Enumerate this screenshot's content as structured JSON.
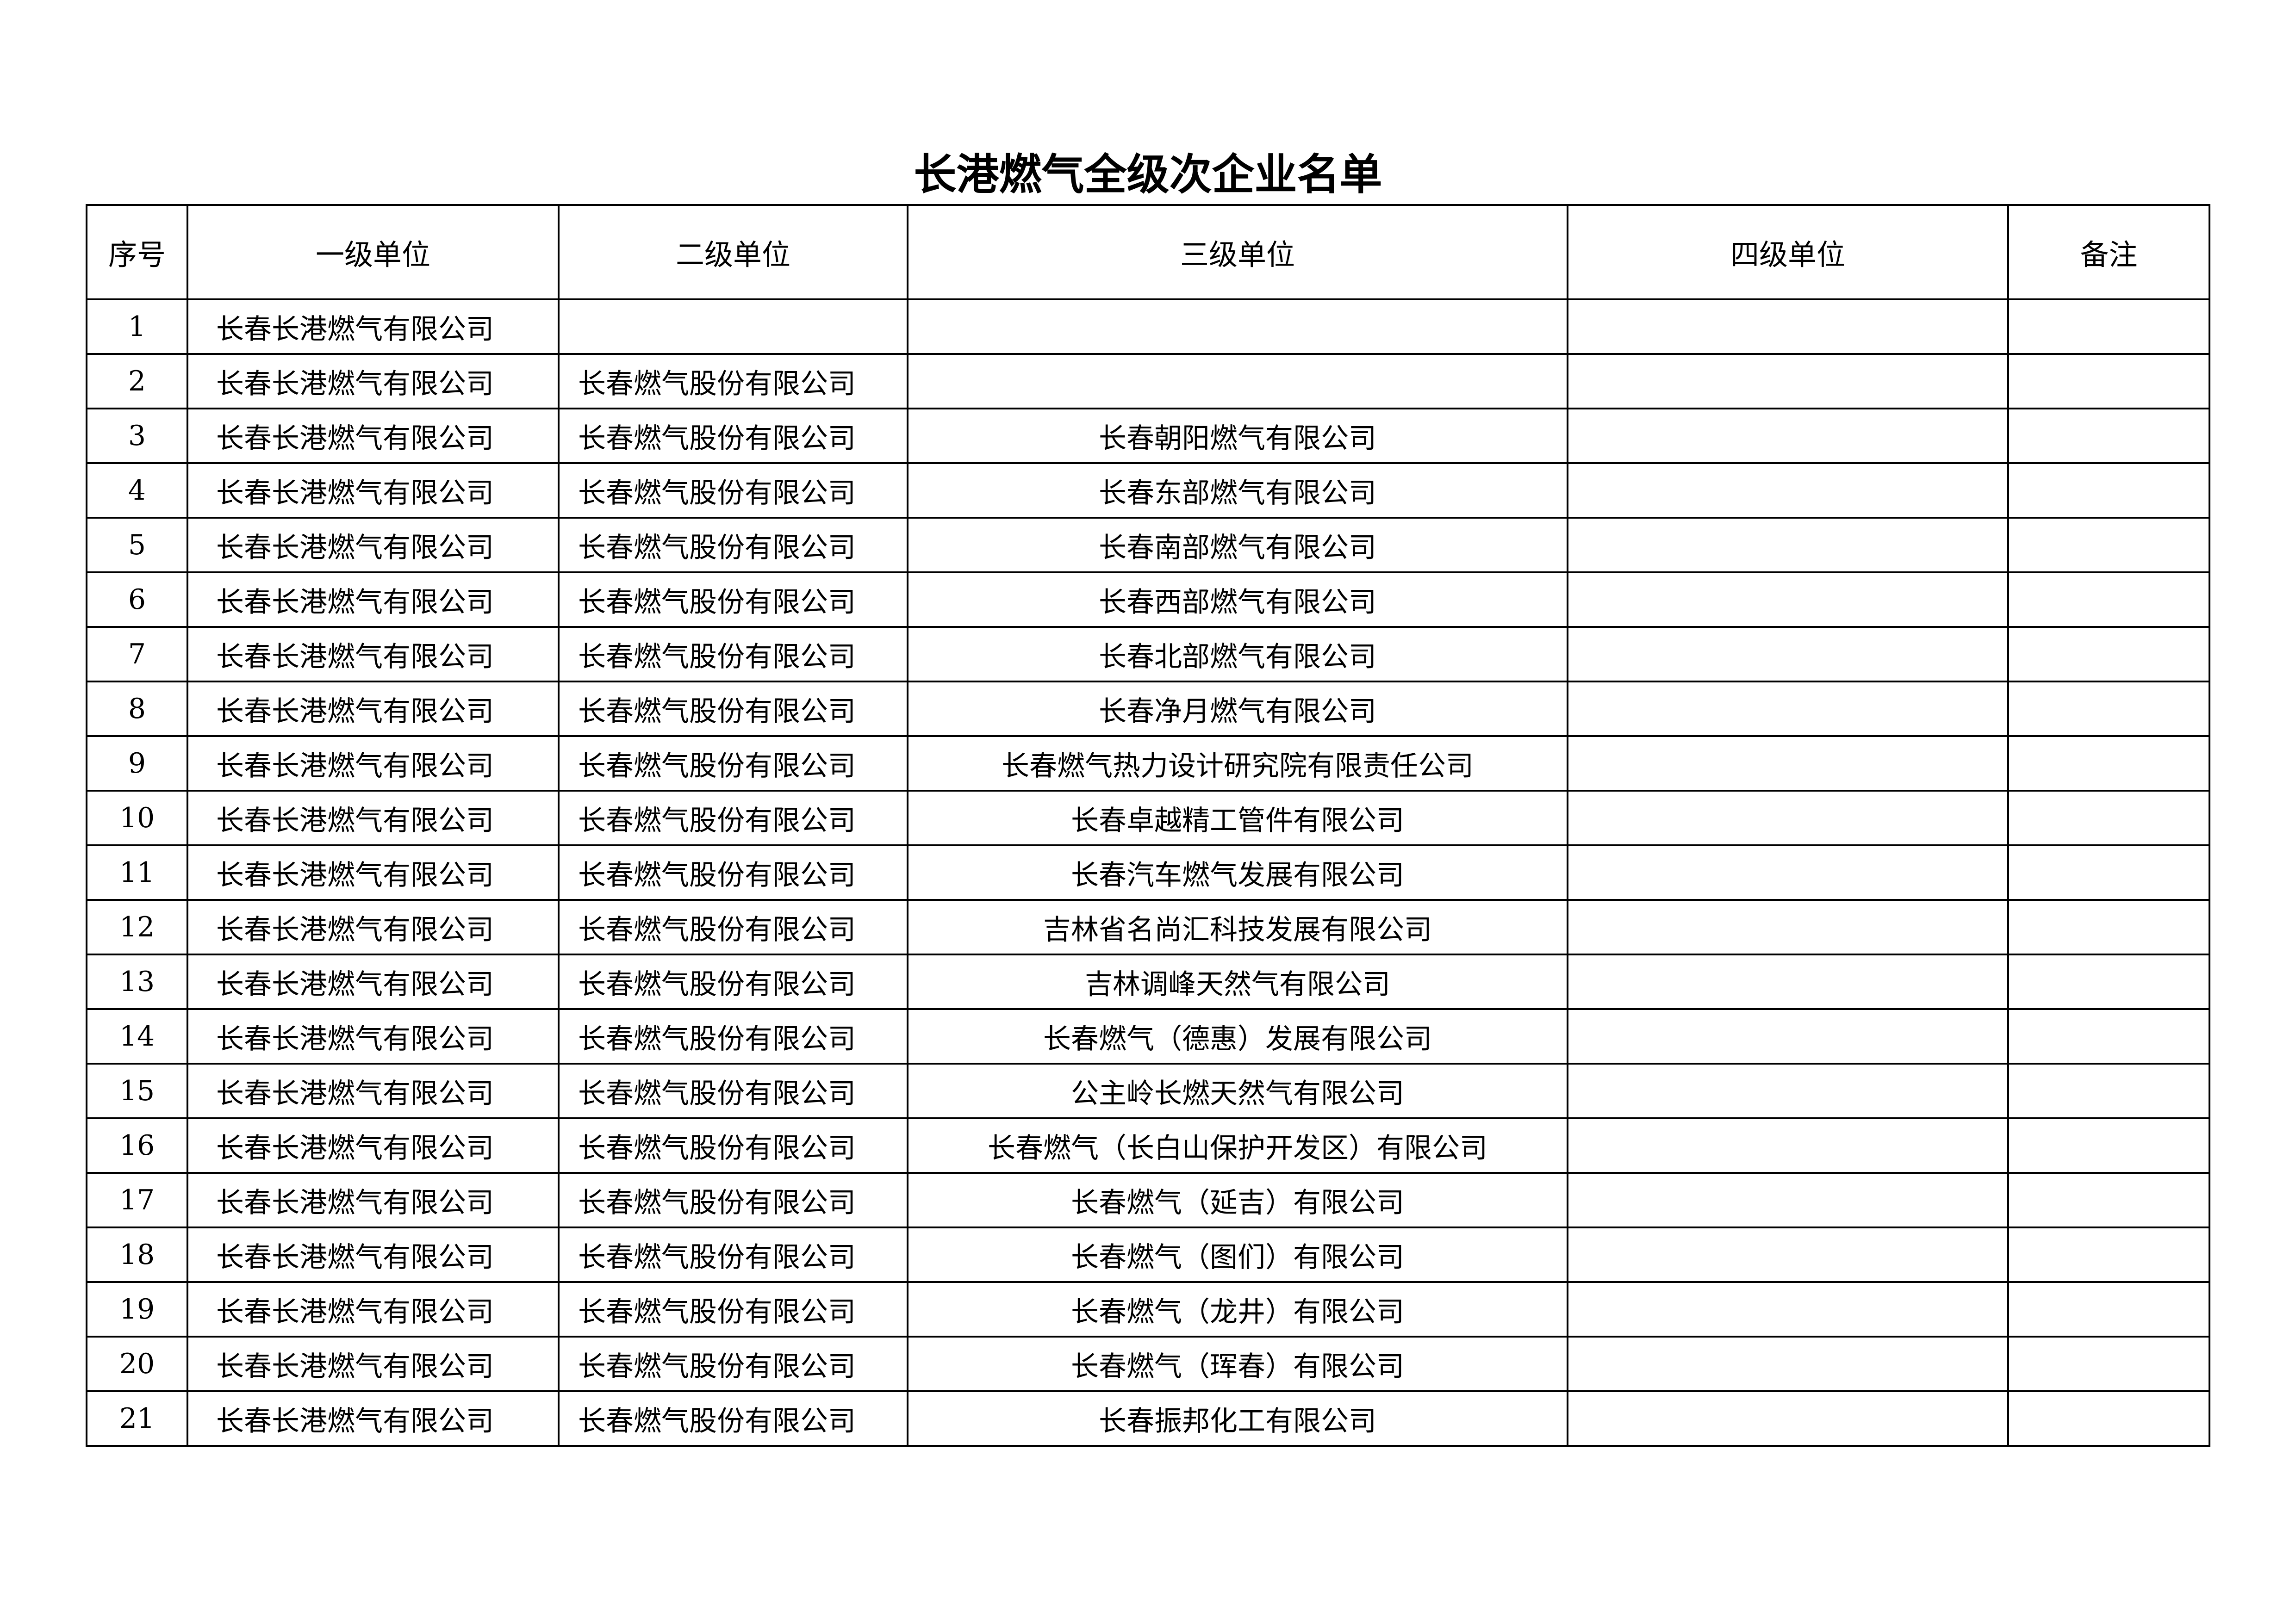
{
  "title": "长港燃气全级次企业名单",
  "headers": [
    "序号",
    "一级单位",
    "二级单位",
    "三级单位",
    "四级单位",
    "备注"
  ],
  "rows": [
    [
      "1",
      "长春长港燃气有限公司",
      "",
      "",
      "",
      ""
    ],
    [
      "2",
      "长春长港燃气有限公司",
      "长春燃气股份有限公司",
      "",
      "",
      ""
    ],
    [
      "3",
      "长春长港燃气有限公司",
      "长春燃气股份有限公司",
      "长春朝阳燃气有限公司",
      "",
      ""
    ],
    [
      "4",
      "长春长港燃气有限公司",
      "长春燃气股份有限公司",
      "长春东部燃气有限公司",
      "",
      ""
    ],
    [
      "5",
      "长春长港燃气有限公司",
      "长春燃气股份有限公司",
      "长春南部燃气有限公司",
      "",
      ""
    ],
    [
      "6",
      "长春长港燃气有限公司",
      "长春燃气股份有限公司",
      "长春西部燃气有限公司",
      "",
      ""
    ],
    [
      "7",
      "长春长港燃气有限公司",
      "长春燃气股份有限公司",
      "长春北部燃气有限公司",
      "",
      ""
    ],
    [
      "8",
      "长春长港燃气有限公司",
      "长春燃气股份有限公司",
      "长春净月燃气有限公司",
      "",
      ""
    ],
    [
      "9",
      "长春长港燃气有限公司",
      "长春燃气股份有限公司",
      "长春燃气热力设计研究院有限责任公司",
      "",
      ""
    ],
    [
      "10",
      "长春长港燃气有限公司",
      "长春燃气股份有限公司",
      "长春卓越精工管件有限公司",
      "",
      ""
    ],
    [
      "11",
      "长春长港燃气有限公司",
      "长春燃气股份有限公司",
      "长春汽车燃气发展有限公司",
      "",
      ""
    ],
    [
      "12",
      "长春长港燃气有限公司",
      "长春燃气股份有限公司",
      "吉林省名尚汇科技发展有限公司",
      "",
      ""
    ],
    [
      "13",
      "长春长港燃气有限公司",
      "长春燃气股份有限公司",
      "吉林调峰天然气有限公司",
      "",
      ""
    ],
    [
      "14",
      "长春长港燃气有限公司",
      "长春燃气股份有限公司",
      "长春燃气（德惠）发展有限公司",
      "",
      ""
    ],
    [
      "15",
      "长春长港燃气有限公司",
      "长春燃气股份有限公司",
      "公主岭长燃天然气有限公司",
      "",
      ""
    ],
    [
      "16",
      "长春长港燃气有限公司",
      "长春燃气股份有限公司",
      "长春燃气（长白山保护开发区）有限公司",
      "",
      ""
    ],
    [
      "17",
      "长春长港燃气有限公司",
      "长春燃气股份有限公司",
      "长春燃气（延吉）有限公司",
      "",
      ""
    ],
    [
      "18",
      "长春长港燃气有限公司",
      "长春燃气股份有限公司",
      "长春燃气（图们）有限公司",
      "",
      ""
    ],
    [
      "19",
      "长春长港燃气有限公司",
      "长春燃气股份有限公司",
      "长春燃气（龙井）有限公司",
      "",
      ""
    ],
    [
      "20",
      "长春长港燃气有限公司",
      "长春燃气股份有限公司",
      "长春燃气（珲春）有限公司",
      "",
      ""
    ],
    [
      "21",
      "长春长港燃气有限公司",
      "长春燃气股份有限公司",
      "长春振邦化工有限公司",
      "",
      ""
    ]
  ]
}
